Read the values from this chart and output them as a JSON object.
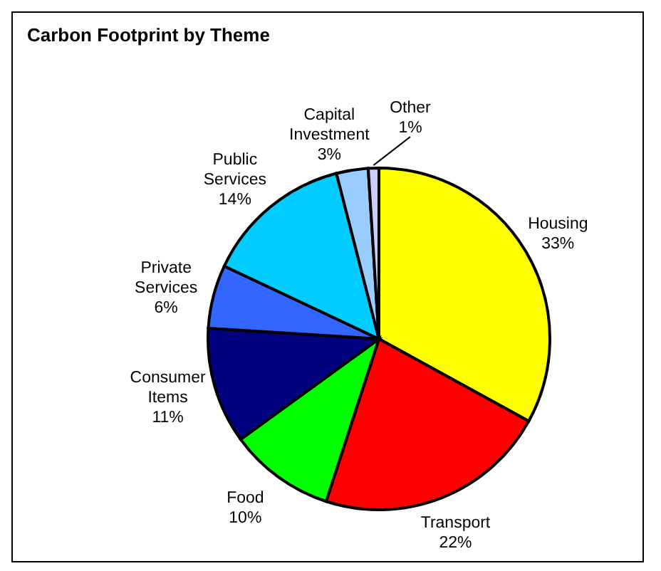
{
  "chart_data": {
    "type": "pie",
    "title": "Carbon Footprint by Theme",
    "categories": [
      "Housing",
      "Transport",
      "Food",
      "Consumer Items",
      "Private Services",
      "Public Services",
      "Capital Investment",
      "Other"
    ],
    "values": [
      33,
      22,
      10,
      11,
      6,
      14,
      3,
      1
    ],
    "value_labels": [
      "33%",
      "22%",
      "10%",
      "11%",
      "6%",
      "14%",
      "3%",
      "1%"
    ],
    "colors": [
      "#ffff00",
      "#ff0000",
      "#00ff00",
      "#000080",
      "#3366ff",
      "#00ccff",
      "#99ccff",
      "#ccccff"
    ],
    "legend": false
  }
}
